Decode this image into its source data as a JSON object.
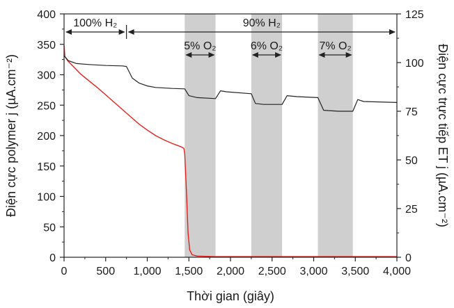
{
  "chart_data": {
    "type": "line",
    "xlabel": "Thời gian (giây)",
    "ylabel_left": "Điện cực polymer j (µA.cm⁻²)",
    "ylabel_right": "Điện cực trực tiếp ET j (µA.cm⁻²)",
    "xlim": [
      0,
      4000
    ],
    "ylim_left": [
      0,
      400
    ],
    "ylim_right": [
      0,
      125
    ],
    "x_tick_labels": [
      "0",
      "500",
      "1,000",
      "1,500",
      "2,000",
      "2,500",
      "3,000",
      "3,500",
      "4,000"
    ],
    "y_left_tick_labels": [
      "0",
      "50",
      "100",
      "150",
      "200",
      "250",
      "300",
      "350",
      "400"
    ],
    "y_right_tick_labels": [
      "0",
      "25",
      "50",
      "75",
      "100",
      "125"
    ],
    "grid": false,
    "shaded_regions": [
      {
        "start": 1450,
        "end": 1820,
        "label": "5% O₂"
      },
      {
        "start": 2250,
        "end": 2620,
        "label": "6% O₂"
      },
      {
        "start": 3050,
        "end": 3470,
        "label": "7% O₂"
      }
    ],
    "spans": [
      {
        "start": 0,
        "end": 750,
        "label": "100% H₂"
      },
      {
        "start": 750,
        "end": 4000,
        "label": "90% H₂"
      }
    ],
    "series": [
      {
        "axis": "left",
        "color": "#e3211c",
        "points": [
          [
            0,
            348
          ],
          [
            10,
            330
          ],
          [
            50,
            322
          ],
          [
            100,
            315
          ],
          [
            200,
            301
          ],
          [
            300,
            290
          ],
          [
            400,
            279
          ],
          [
            500,
            267
          ],
          [
            600,
            255
          ],
          [
            700,
            243
          ],
          [
            800,
            231
          ],
          [
            900,
            219
          ],
          [
            1000,
            209
          ],
          [
            1100,
            200
          ],
          [
            1200,
            193
          ],
          [
            1300,
            187
          ],
          [
            1400,
            182
          ],
          [
            1440,
            179
          ],
          [
            1450,
            170
          ],
          [
            1470,
            110
          ],
          [
            1490,
            40
          ],
          [
            1510,
            12
          ],
          [
            1540,
            4
          ],
          [
            1600,
            2
          ],
          [
            1800,
            1
          ],
          [
            2500,
            1
          ],
          [
            3000,
            1
          ],
          [
            3500,
            1
          ],
          [
            4000,
            1
          ]
        ]
      },
      {
        "axis": "right",
        "color": "#222222",
        "points": [
          [
            0,
            103.5
          ],
          [
            50,
            101
          ],
          [
            150,
            99.5
          ],
          [
            300,
            99
          ],
          [
            500,
            98.5
          ],
          [
            700,
            98.3
          ],
          [
            750,
            98
          ],
          [
            820,
            92
          ],
          [
            900,
            89.5
          ],
          [
            1000,
            88
          ],
          [
            1100,
            87.2
          ],
          [
            1300,
            86.7
          ],
          [
            1450,
            86.5
          ],
          [
            1500,
            83
          ],
          [
            1600,
            82
          ],
          [
            1820,
            81.5
          ],
          [
            1880,
            85.5
          ],
          [
            1950,
            85
          ],
          [
            2250,
            84
          ],
          [
            2300,
            79
          ],
          [
            2400,
            78.5
          ],
          [
            2620,
            78.5
          ],
          [
            2680,
            83
          ],
          [
            2800,
            82.5
          ],
          [
            3050,
            82
          ],
          [
            3120,
            75.5
          ],
          [
            3300,
            75
          ],
          [
            3470,
            75
          ],
          [
            3530,
            81
          ],
          [
            3600,
            80
          ],
          [
            4000,
            79.5
          ]
        ]
      }
    ]
  }
}
